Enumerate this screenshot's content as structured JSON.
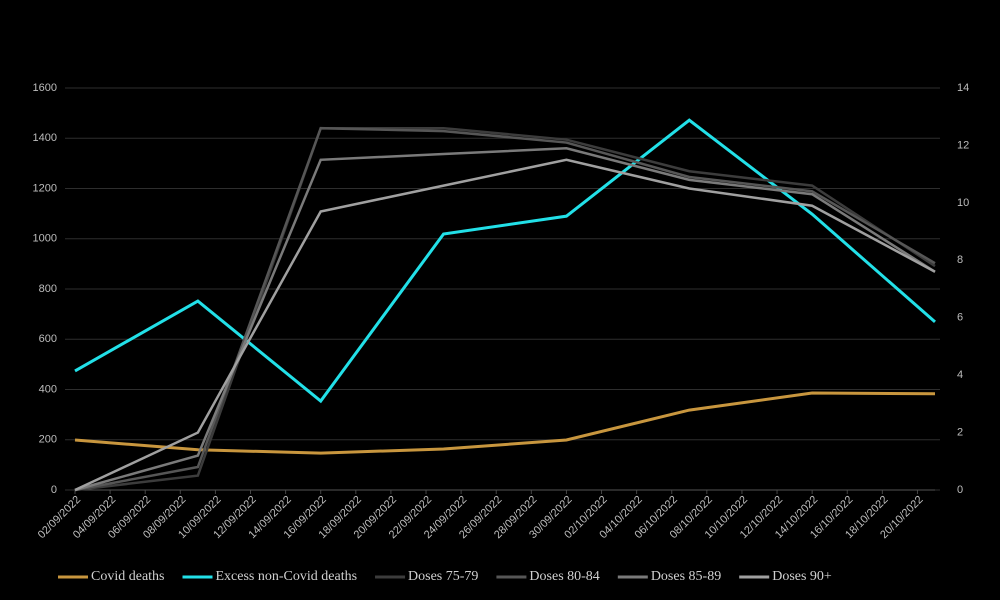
{
  "chart_data": {
    "type": "line",
    "x": [
      "02/09/2022",
      "09/09/2022",
      "16/09/2022",
      "23/09/2022",
      "30/09/2022",
      "07/10/2022",
      "14/10/2022",
      "21/10/2022"
    ],
    "xlim": [
      "02/09/2022",
      "21/10/2022"
    ],
    "xticks": [
      "02/09/2022",
      "04/09/2022",
      "06/09/2022",
      "08/09/2022",
      "10/09/2022",
      "12/09/2022",
      "14/09/2022",
      "16/09/2022",
      "18/09/2022",
      "20/09/2022",
      "22/09/2022",
      "24/09/2022",
      "26/09/2022",
      "28/09/2022",
      "30/09/2022",
      "02/10/2022",
      "04/10/2022",
      "06/10/2022",
      "08/10/2022",
      "10/10/2022",
      "12/10/2022",
      "14/10/2022",
      "16/10/2022",
      "18/10/2022",
      "20/10/2022"
    ],
    "ylim": [
      0,
      1600
    ],
    "yticks": [
      0,
      200,
      400,
      600,
      800,
      1000,
      1200,
      1400,
      1600
    ],
    "y2lim": [
      0,
      14
    ],
    "y2ticks": [
      0,
      2,
      4,
      6,
      8,
      10,
      12,
      14
    ],
    "grid": true,
    "legend": "bottom",
    "series": [
      {
        "name": "Covid deaths",
        "color": "#c8963e",
        "values": [
          199,
          160,
          147,
          163,
          199,
          318,
          386,
          383
        ]
      },
      {
        "name": "Excess non-Covid deaths",
        "color": "#22e0e8",
        "values": [
          474,
          752,
          354,
          1019,
          1090,
          1472,
          1098,
          669
        ]
      },
      {
        "name": "Doses 75-79",
        "color": "#3c3c3c",
        "axis": "y2",
        "values": [
          0,
          0.5,
          12.6,
          12.6,
          12.2,
          11.1,
          10.6,
          7.8
        ]
      },
      {
        "name": "Doses 80-84",
        "color": "#565656",
        "axis": "y2",
        "values": [
          0,
          0.8,
          12.6,
          12.5,
          12.1,
          10.9,
          10.4,
          7.9
        ]
      },
      {
        "name": "Doses 85-89",
        "color": "#7a7a7a",
        "axis": "y2",
        "values": [
          0,
          1.2,
          11.5,
          11.7,
          11.9,
          10.8,
          10.3,
          7.6
        ]
      },
      {
        "name": "Doses 90+",
        "color": "#a0a0a0",
        "axis": "y2",
        "values": [
          0,
          2.0,
          9.7,
          10.6,
          11.5,
          10.5,
          9.9,
          7.6
        ]
      }
    ]
  }
}
